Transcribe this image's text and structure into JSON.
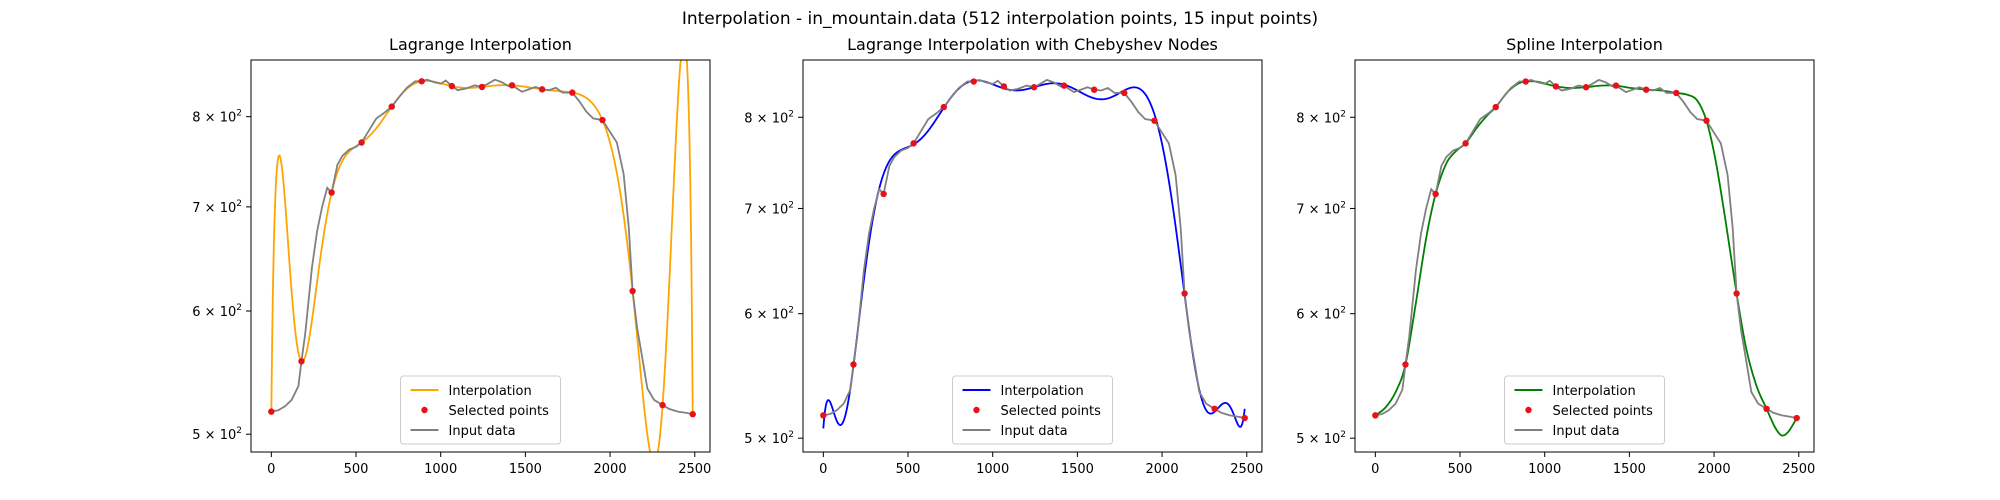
{
  "figure": {
    "title": "Interpolation - in_mountain.data (512 interpolation points, 15 input points)"
  },
  "colors": {
    "input_data": "#808080",
    "selected_points": "#e8101a",
    "lagrange": "#ffa500",
    "chebyshev": "#0000ff",
    "spline": "#008000"
  },
  "chart_data": [
    {
      "type": "line",
      "title": "Lagrange Interpolation",
      "xlim": [
        -120,
        2590
      ],
      "ylim": [
        487,
        870
      ],
      "yscale": "log",
      "xticks": [
        0,
        500,
        1000,
        1500,
        2000,
        2500
      ],
      "yticks": [
        {
          "value": 500,
          "label": "5 × 10",
          "exp": "2"
        },
        {
          "value": 600,
          "label": "6 × 10",
          "exp": "2"
        },
        {
          "value": 700,
          "label": "7 × 10",
          "exp": "2"
        },
        {
          "value": 800,
          "label": "8 × 10",
          "exp": "2"
        }
      ],
      "legend": {
        "position": "lower center",
        "entries": [
          "Interpolation",
          "Selected points",
          "Input data"
        ]
      },
      "interp_color": "#ffa500",
      "selected_points": {
        "x": [
          0,
          178,
          356,
          533,
          711,
          888,
          1066,
          1244,
          1421,
          1599,
          1777,
          1955,
          2133,
          2310,
          2488
        ],
        "y": [
          517,
          557,
          715,
          770,
          812,
          843,
          837,
          836,
          838,
          833,
          829,
          796,
          618,
          522,
          515
        ]
      },
      "input_data": {
        "x": [
          0,
          40,
          80,
          120,
          160,
          178,
          200,
          240,
          270,
          300,
          330,
          356,
          390,
          420,
          460,
          500,
          533,
          580,
          620,
          670,
          711,
          760,
          800,
          850,
          888,
          920,
          960,
          1000,
          1030,
          1066,
          1100,
          1150,
          1200,
          1244,
          1280,
          1320,
          1360,
          1400,
          1421,
          1450,
          1480,
          1520,
          1560,
          1599,
          1640,
          1680,
          1720,
          1777,
          1820,
          1860,
          1900,
          1955,
          2000,
          2040,
          2080,
          2110,
          2133,
          2160,
          2190,
          2220,
          2260,
          2310,
          2350,
          2400,
          2450,
          2488
        ],
        "y": [
          517,
          518,
          521,
          526,
          537,
          557,
          580,
          640,
          675,
          700,
          720,
          715,
          745,
          755,
          762,
          765,
          770,
          785,
          798,
          805,
          812,
          825,
          835,
          843,
          843,
          845,
          842,
          840,
          844,
          837,
          832,
          834,
          838,
          836,
          840,
          845,
          842,
          837,
          838,
          834,
          830,
          833,
          836,
          833,
          832,
          835,
          829,
          829,
          818,
          806,
          798,
          796,
          782,
          770,
          735,
          680,
          618,
          585,
          560,
          535,
          526,
          522,
          519,
          517,
          516,
          515
        ]
      }
    },
    {
      "type": "line",
      "title": "Lagrange Interpolation with Chebyshev Nodes",
      "xlim": [
        -120,
        2590
      ],
      "ylim": [
        490,
        870
      ],
      "yscale": "log",
      "xticks": [
        0,
        500,
        1000,
        1500,
        2000,
        2500
      ],
      "yticks": [
        {
          "value": 500,
          "label": "5 × 10",
          "exp": "2"
        },
        {
          "value": 600,
          "label": "6 × 10",
          "exp": "2"
        },
        {
          "value": 700,
          "label": "7 × 10",
          "exp": "2"
        },
        {
          "value": 800,
          "label": "8 × 10",
          "exp": "2"
        }
      ],
      "legend": {
        "position": "lower center",
        "entries": [
          "Interpolation",
          "Selected points",
          "Input data"
        ]
      },
      "interp_color": "#0000ff",
      "selected_points": {
        "x": [
          0,
          178,
          356,
          533,
          711,
          888,
          1066,
          1244,
          1421,
          1599,
          1777,
          1955,
          2133,
          2310,
          2488
        ],
        "y": [
          517,
          557,
          715,
          770,
          812,
          843,
          837,
          836,
          838,
          833,
          829,
          796,
          618,
          522,
          515
        ]
      },
      "input_data": {
        "x": [
          0,
          40,
          80,
          120,
          160,
          178,
          200,
          240,
          270,
          300,
          330,
          356,
          390,
          420,
          460,
          500,
          533,
          580,
          620,
          670,
          711,
          760,
          800,
          850,
          888,
          920,
          960,
          1000,
          1030,
          1066,
          1100,
          1150,
          1200,
          1244,
          1280,
          1320,
          1360,
          1400,
          1421,
          1450,
          1480,
          1520,
          1560,
          1599,
          1640,
          1680,
          1720,
          1777,
          1820,
          1860,
          1900,
          1955,
          2000,
          2040,
          2080,
          2110,
          2133,
          2160,
          2190,
          2220,
          2260,
          2310,
          2350,
          2400,
          2450,
          2488
        ],
        "y": [
          517,
          518,
          521,
          526,
          537,
          557,
          580,
          640,
          675,
          700,
          720,
          715,
          745,
          755,
          762,
          765,
          770,
          785,
          798,
          805,
          812,
          825,
          835,
          843,
          843,
          845,
          842,
          840,
          844,
          837,
          832,
          834,
          838,
          836,
          840,
          845,
          842,
          837,
          838,
          834,
          830,
          833,
          836,
          833,
          832,
          835,
          829,
          829,
          818,
          806,
          798,
          796,
          782,
          770,
          735,
          680,
          618,
          585,
          560,
          535,
          526,
          522,
          519,
          517,
          516,
          515
        ]
      }
    },
    {
      "type": "line",
      "title": "Spline Interpolation",
      "xlim": [
        -120,
        2590
      ],
      "ylim": [
        490,
        870
      ],
      "yscale": "log",
      "xticks": [
        0,
        500,
        1000,
        1500,
        2000,
        2500
      ],
      "yticks": [
        {
          "value": 500,
          "label": "5 × 10",
          "exp": "2"
        },
        {
          "value": 600,
          "label": "6 × 10",
          "exp": "2"
        },
        {
          "value": 700,
          "label": "7 × 10",
          "exp": "2"
        },
        {
          "value": 800,
          "label": "8 × 10",
          "exp": "2"
        }
      ],
      "legend": {
        "position": "lower center",
        "entries": [
          "Interpolation",
          "Selected points",
          "Input data"
        ]
      },
      "interp_color": "#008000",
      "selected_points": {
        "x": [
          0,
          178,
          356,
          533,
          711,
          888,
          1066,
          1244,
          1421,
          1599,
          1777,
          1955,
          2133,
          2310,
          2488
        ],
        "y": [
          517,
          557,
          715,
          770,
          812,
          843,
          837,
          836,
          838,
          833,
          829,
          796,
          618,
          522,
          515
        ]
      },
      "input_data": {
        "x": [
          0,
          40,
          80,
          120,
          160,
          178,
          200,
          240,
          270,
          300,
          330,
          356,
          390,
          420,
          460,
          500,
          533,
          580,
          620,
          670,
          711,
          760,
          800,
          850,
          888,
          920,
          960,
          1000,
          1030,
          1066,
          1100,
          1150,
          1200,
          1244,
          1280,
          1320,
          1360,
          1400,
          1421,
          1450,
          1480,
          1520,
          1560,
          1599,
          1640,
          1680,
          1720,
          1777,
          1820,
          1860,
          1900,
          1955,
          2000,
          2040,
          2080,
          2110,
          2133,
          2160,
          2190,
          2220,
          2260,
          2310,
          2350,
          2400,
          2450,
          2488
        ],
        "y": [
          517,
          518,
          521,
          526,
          537,
          557,
          580,
          640,
          675,
          700,
          720,
          715,
          745,
          755,
          762,
          765,
          770,
          785,
          798,
          805,
          812,
          825,
          835,
          843,
          843,
          845,
          842,
          840,
          844,
          837,
          832,
          834,
          838,
          836,
          840,
          845,
          842,
          837,
          838,
          834,
          830,
          833,
          836,
          833,
          832,
          835,
          829,
          829,
          818,
          806,
          798,
          796,
          782,
          770,
          735,
          680,
          618,
          585,
          560,
          535,
          526,
          522,
          519,
          517,
          516,
          515
        ]
      },
      "interpolation": {
        "x": [
          0,
          60,
          120,
          178,
          240,
          300,
          356,
          420,
          480,
          533,
          600,
          660,
          711,
          780,
          840,
          888,
          950,
          1010,
          1066,
          1150,
          1244,
          1330,
          1421,
          1510,
          1599,
          1690,
          1777,
          1840,
          1900,
          1955,
          2010,
          2070,
          2133,
          2190,
          2250,
          2310,
          2360,
          2400,
          2440,
          2488
        ],
        "y": [
          517,
          523,
          535,
          557,
          610,
          670,
          715,
          748,
          762,
          770,
          788,
          802,
          812,
          830,
          840,
          843,
          843,
          840,
          837,
          835,
          836,
          838,
          838,
          835,
          833,
          832,
          829,
          827,
          820,
          796,
          750,
          685,
          618,
          570,
          540,
          522,
          508,
          502,
          505,
          515
        ]
      }
    }
  ]
}
